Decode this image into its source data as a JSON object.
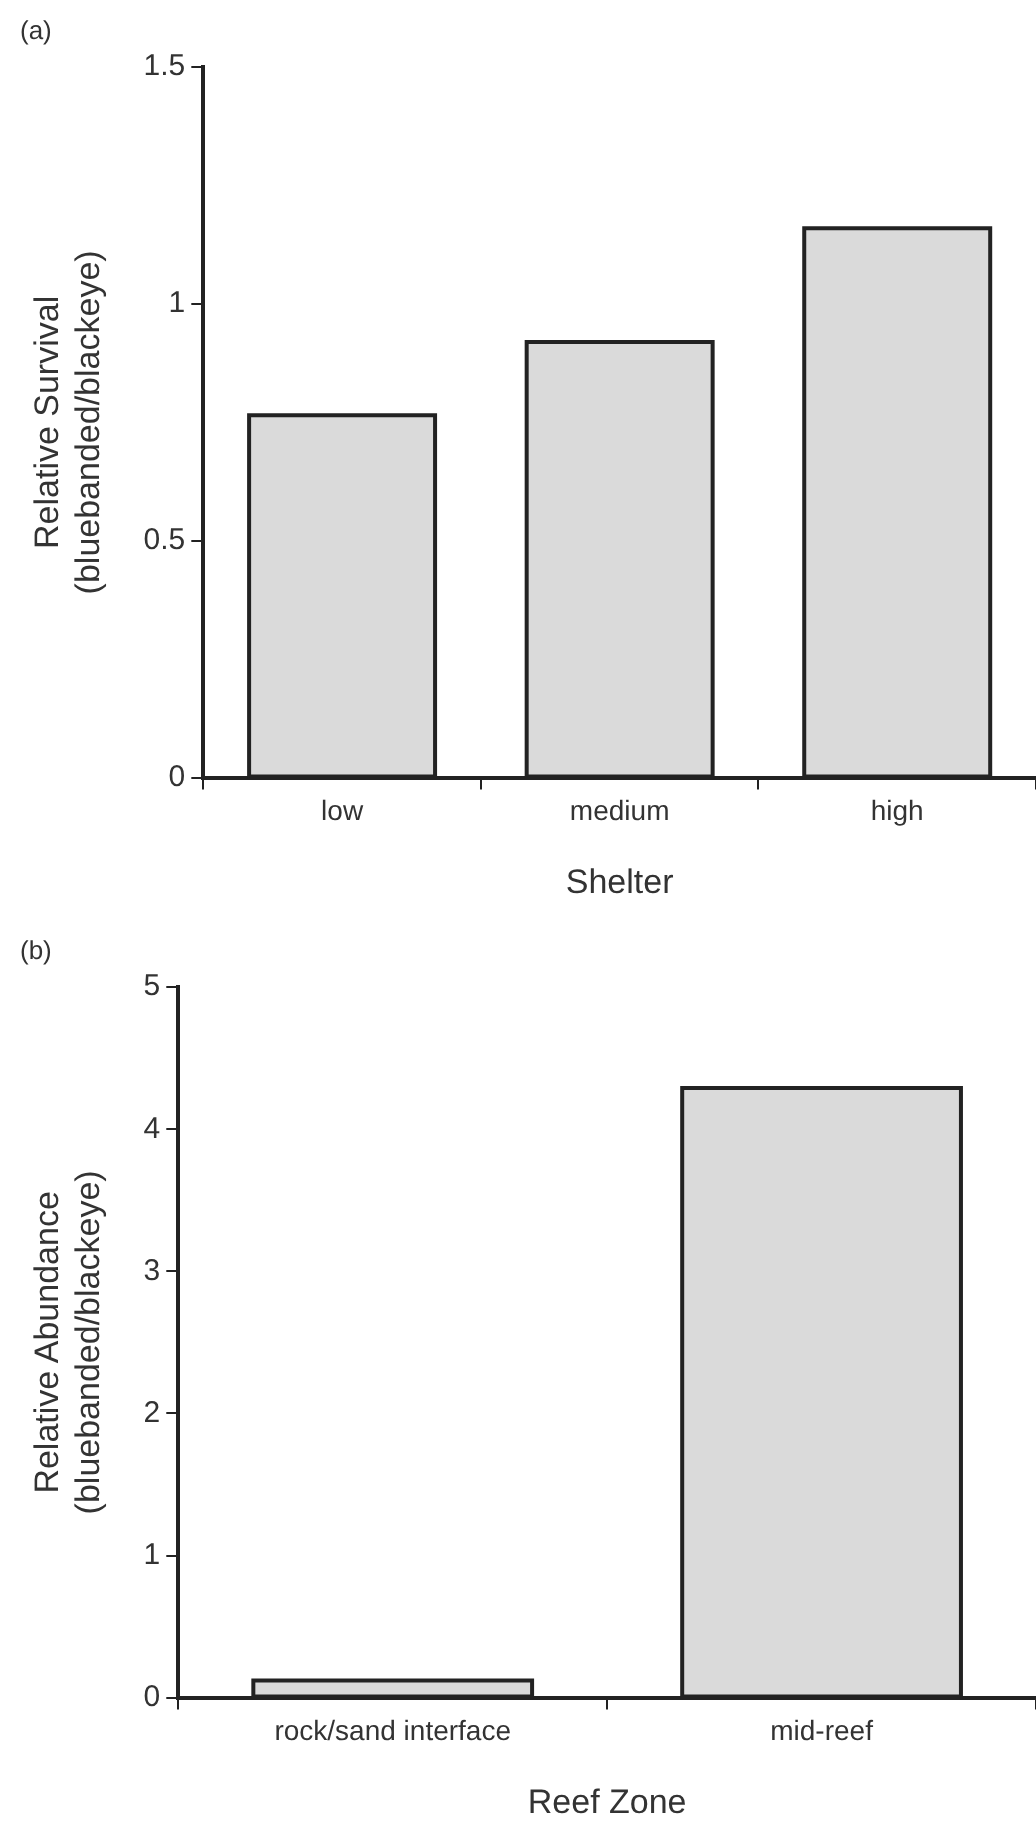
{
  "chart_data": [
    {
      "type": "bar",
      "title": "(a)",
      "xlabel": "Shelter",
      "ylabel": "Relative Survival\n(bluebanded/blackeye)",
      "categories": [
        "low",
        "medium",
        "high"
      ],
      "values": [
        0.765,
        0.92,
        1.16
      ],
      "color": "#dadada",
      "ylim": [
        0,
        1.5
      ],
      "yticks": [
        0,
        0.5,
        1,
        1.5
      ],
      "grid": false,
      "legend": false
    },
    {
      "type": "bar",
      "title": "(b)",
      "xlabel": "Reef Zone",
      "ylabel": "Relative Abundance\n(bluebanded/blackeye)",
      "categories": [
        "rock/sand interface",
        "mid-reef"
      ],
      "values": [
        0.12,
        4.29
      ],
      "color": "#dadada",
      "ylim": [
        0,
        5
      ],
      "yticks": [
        0,
        1,
        2,
        3,
        4,
        5
      ],
      "grid": false,
      "legend": false
    }
  ]
}
